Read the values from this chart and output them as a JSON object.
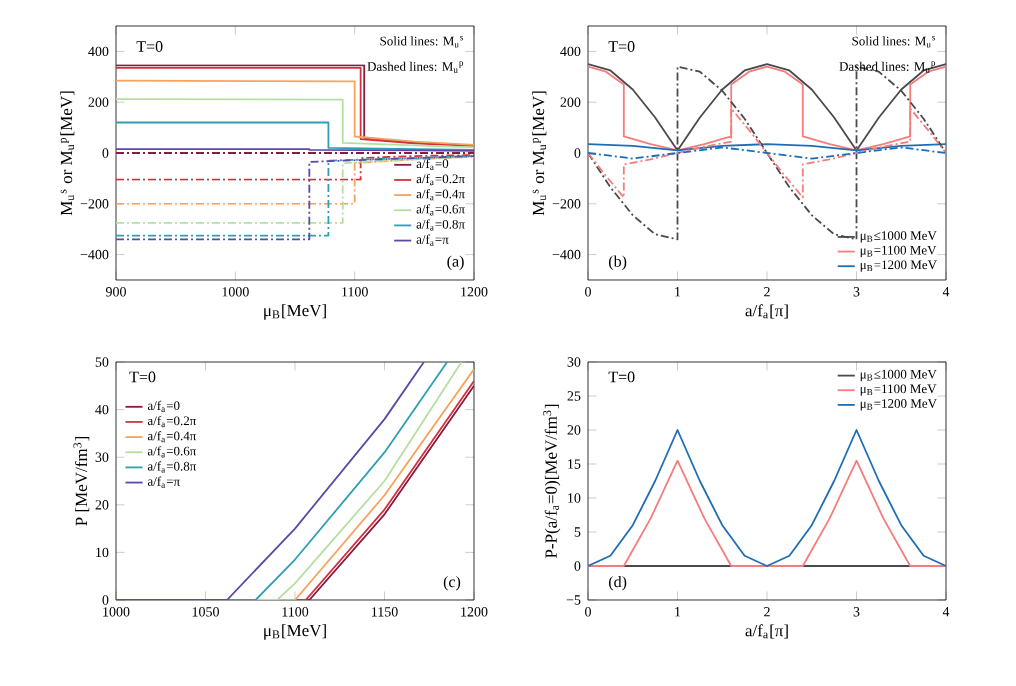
{
  "chart_data": [
    {
      "type": "line",
      "xlabel": "μ$_{B}$[MeV]",
      "ylabel": "M$_{u}$$^{s}$ or M$_{u}$$^{p}$[MeV]",
      "xlim": [
        900,
        1200
      ],
      "ylim": [
        -500,
        500
      ],
      "xticks": [
        900,
        1000,
        1100,
        1200
      ],
      "yticks": [
        {
          "value": -400,
          "label": "−400"
        },
        {
          "value": -200,
          "label": "−200"
        },
        0,
        200,
        400
      ],
      "legend": "bottom right",
      "line_style": "solid",
      "annotations": [
        "T=0",
        "Solid lines: M$_{u}$$^{s}$",
        "Dashed lines: M$_{u}$$^{p}$",
        "(a)"
      ],
      "series": [
        {
          "name": "a/f$_{a}$=0",
          "color": "#8b1a3e",
          "x": [
            900,
            1108,
            1108,
            1150,
            1200
          ],
          "values": [
            345,
            345,
            60,
            40,
            30
          ]
        },
        {
          "name": "a/f$_{a}$=0.2π",
          "color": "#d6303f",
          "x": [
            900,
            1105,
            1105,
            1150,
            1200
          ],
          "values": [
            335,
            335,
            55,
            38,
            28
          ]
        },
        {
          "name": "a/f$_{a}$=0.4π",
          "color": "#f7a35c",
          "x": [
            900,
            1100,
            1100,
            1150,
            1200
          ],
          "values": [
            285,
            282,
            65,
            45,
            32
          ]
        },
        {
          "name": "a/f$_{a}$=0.6π",
          "color": "#b5dfa0",
          "x": [
            900,
            1090,
            1090,
            1150,
            1200
          ],
          "values": [
            212,
            210,
            40,
            30,
            22
          ]
        },
        {
          "name": "a/f$_{a}$=0.8π",
          "color": "#2e9fb3",
          "x": [
            900,
            1078,
            1078,
            1150,
            1200
          ],
          "values": [
            120,
            120,
            20,
            15,
            12
          ]
        },
        {
          "name": "a/f$_{a}$=π",
          "color": "#5a4aa5",
          "x": [
            900,
            1062,
            1062,
            1150,
            1200
          ],
          "values": [
            15,
            15,
            12,
            10,
            8
          ]
        },
        {
          "color": "#8b1a3e",
          "line_style": "dashed",
          "x": [
            900,
            1200
          ],
          "values": [
            0,
            0
          ]
        },
        {
          "color": "#d6303f",
          "line_style": "dashed",
          "x": [
            900,
            1105,
            1105,
            1150,
            1200
          ],
          "values": [
            -105,
            -105,
            -20,
            -12,
            -8
          ]
        },
        {
          "color": "#f7a35c",
          "line_style": "dashed",
          "x": [
            900,
            1100,
            1100,
            1150,
            1200
          ],
          "values": [
            -200,
            -200,
            -40,
            -25,
            -15
          ]
        },
        {
          "color": "#b5dfa0",
          "line_style": "dashed",
          "x": [
            900,
            1090,
            1090,
            1150,
            1200
          ],
          "values": [
            -275,
            -275,
            -40,
            -25,
            -15
          ]
        },
        {
          "color": "#2e9fb3",
          "line_style": "dashed",
          "x": [
            900,
            1078,
            1078,
            1150,
            1200
          ],
          "values": [
            -325,
            -325,
            -30,
            -20,
            -12
          ]
        },
        {
          "color": "#5a4aa5",
          "line_style": "dashed",
          "x": [
            900,
            1062,
            1062,
            1150,
            1200
          ],
          "values": [
            -340,
            -340,
            -35,
            -20,
            -12
          ]
        }
      ]
    },
    {
      "type": "line",
      "xlabel": "a/f$_{a}$[π]",
      "ylabel": "M$_{u}$$^{s}$ or M$_{u}$$^{p}$[MeV]",
      "xlim": [
        0,
        4
      ],
      "ylim": [
        -500,
        500
      ],
      "xticks": [
        0,
        1,
        2,
        3,
        4
      ],
      "yticks": [
        {
          "value": -400,
          "label": "−400"
        },
        {
          "value": -200,
          "label": "−200"
        },
        0,
        200,
        400
      ],
      "legend": "bottom right",
      "line_style": "solid",
      "annotations": [
        "T=0",
        "Solid lines: M$_{u}$$^{s}$",
        "Dashed lines: M$_{u}$$^{p}$",
        "(b)"
      ],
      "series": [
        {
          "name": "μ$_{B}$≤1000 MeV",
          "color": "#4a4a4a",
          "x": [
            0,
            0.25,
            0.5,
            0.75,
            1,
            1.25,
            1.5,
            1.75,
            2,
            2.25,
            2.5,
            2.75,
            3,
            3.25,
            3.5,
            3.75,
            4
          ],
          "values": [
            350,
            325,
            250,
            140,
            10,
            140,
            250,
            325,
            350,
            325,
            250,
            140,
            10,
            140,
            250,
            325,
            350
          ]
        },
        {
          "name": "μ$_{B}$=1100 MeV",
          "color": "#f47c7c",
          "x": [
            0,
            0.2,
            0.4,
            0.4,
            0.7,
            1,
            1.3,
            1.6,
            1.6,
            1.8,
            2,
            2.2,
            2.4,
            2.4,
            2.7,
            3,
            3.3,
            3.6,
            3.6,
            3.8,
            4
          ],
          "values": [
            340,
            320,
            270,
            65,
            35,
            10,
            35,
            65,
            270,
            320,
            340,
            320,
            270,
            65,
            35,
            10,
            35,
            65,
            270,
            320,
            340
          ]
        },
        {
          "name": "μ$_{B}$=1200 MeV",
          "color": "#1f6db5",
          "x": [
            0,
            0.5,
            1,
            1.5,
            2,
            2.5,
            3,
            3.5,
            4
          ],
          "values": [
            35,
            28,
            10,
            28,
            35,
            28,
            10,
            28,
            35
          ]
        },
        {
          "color": "#4a4a4a",
          "line_style": "dashed",
          "x": [
            0,
            0.25,
            0.5,
            0.75,
            1,
            1,
            1.25,
            1.5,
            1.75,
            2,
            2.25,
            2.5,
            2.75,
            3,
            3,
            3.25,
            3.5,
            3.75,
            4
          ],
          "values": [
            0,
            -135,
            -245,
            -320,
            -340,
            340,
            320,
            245,
            135,
            0,
            -135,
            -245,
            -320,
            -340,
            340,
            320,
            245,
            135,
            0
          ]
        },
        {
          "color": "#f47c7c",
          "line_style": "dashed",
          "x": [
            0,
            0.2,
            0.4,
            0.4,
            0.7,
            1,
            1.3,
            1.6,
            1.6,
            1.8,
            2,
            2.2,
            2.4,
            2.4,
            2.7,
            3,
            3.3,
            3.6,
            3.6,
            3.8,
            4
          ],
          "values": [
            0,
            -90,
            -175,
            -45,
            -25,
            0,
            25,
            45,
            175,
            90,
            0,
            -90,
            -175,
            -45,
            -25,
            0,
            25,
            45,
            175,
            90,
            0
          ]
        },
        {
          "color": "#1f6db5",
          "line_style": "dashed",
          "x": [
            0,
            0.5,
            1,
            1.5,
            2,
            2.5,
            3,
            3.5,
            4
          ],
          "values": [
            0,
            -22,
            0,
            22,
            0,
            -22,
            0,
            22,
            0
          ]
        }
      ]
    },
    {
      "type": "line",
      "xlabel": "μ$_{B}$[MeV]",
      "ylabel": "P [MeV/fm$^{3}$]",
      "xlim": [
        1000,
        1200
      ],
      "ylim": [
        0,
        50
      ],
      "xticks": [
        1000,
        1050,
        1100,
        1150,
        1200
      ],
      "yticks": [
        0,
        10,
        20,
        30,
        40,
        50
      ],
      "legend": "top left",
      "line_style": "solid",
      "annotations": [
        "T=0",
        "(c)"
      ],
      "series": [
        {
          "name": "a/f$_{a}$=0",
          "color": "#8b1a3e",
          "x": [
            1000,
            1108,
            1150,
            1200
          ],
          "values": [
            0,
            0,
            18,
            45
          ]
        },
        {
          "name": "a/f$_{a}$=0.2π",
          "color": "#d6303f",
          "x": [
            1000,
            1106,
            1150,
            1200
          ],
          "values": [
            0,
            0,
            19,
            46
          ]
        },
        {
          "name": "a/f$_{a}$=0.4π",
          "color": "#f7a35c",
          "x": [
            1000,
            1100,
            1150,
            1200
          ],
          "values": [
            0,
            0,
            22,
            48.5
          ]
        },
        {
          "name": "a/f$_{a}$=0.6π",
          "color": "#b5dfa0",
          "x": [
            1000,
            1090,
            1100,
            1150,
            1193
          ],
          "values": [
            0,
            0,
            3.5,
            25,
            50
          ]
        },
        {
          "name": "a/f$_{a}$=0.8π",
          "color": "#2e9fb3",
          "x": [
            1000,
            1078,
            1100,
            1150,
            1185
          ],
          "values": [
            0,
            0,
            8.5,
            31,
            50
          ]
        },
        {
          "name": "a/f$_{a}$=π",
          "color": "#5a4aa5",
          "x": [
            1000,
            1062,
            1100,
            1150,
            1172
          ],
          "values": [
            0,
            0,
            15,
            38,
            50
          ]
        }
      ]
    },
    {
      "type": "line",
      "xlabel": "a/f$_{a}$[π]",
      "ylabel": "P-P(a/f$_{a}$=0)[MeV/fm$^{3}$]",
      "xlim": [
        0,
        4
      ],
      "ylim": [
        -5,
        30
      ],
      "xticks": [
        0,
        1,
        2,
        3,
        4
      ],
      "yticks": [
        {
          "value": -5,
          "label": "−5"
        },
        0,
        5,
        10,
        15,
        20,
        25,
        30
      ],
      "legend": "top right",
      "line_style": "solid",
      "annotations": [
        "T=0",
        "(d)"
      ],
      "series": [
        {
          "name": "μ$_{B}$≤1000 MeV",
          "color": "#4a4a4a",
          "x": [
            0,
            4
          ],
          "values": [
            0,
            0
          ]
        },
        {
          "name": "μ$_{B}$=1100 MeV",
          "color": "#f47c7c",
          "x": [
            0,
            0.4,
            0.7,
            1,
            1.3,
            1.6,
            2.4,
            2.7,
            3,
            3.3,
            3.6,
            4
          ],
          "values": [
            0,
            0,
            7,
            15.5,
            7,
            0,
            0,
            7,
            15.5,
            7,
            0,
            0
          ]
        },
        {
          "name": "μ$_{B}$=1200 MeV",
          "color": "#1f6db5",
          "x": [
            0,
            0.25,
            0.5,
            0.75,
            1,
            1.25,
            1.5,
            1.75,
            2,
            2.25,
            2.5,
            2.75,
            3,
            3.25,
            3.5,
            3.75,
            4
          ],
          "values": [
            0,
            1.5,
            6,
            12.5,
            20,
            12.5,
            6,
            1.5,
            0,
            1.5,
            6,
            12.5,
            20,
            12.5,
            6,
            1.5,
            0
          ]
        }
      ]
    }
  ]
}
